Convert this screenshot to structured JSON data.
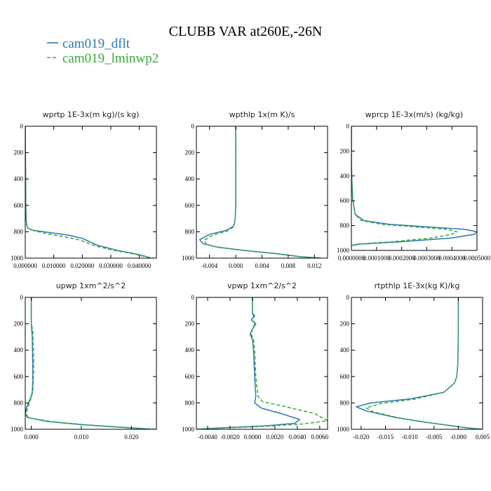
{
  "figure": {
    "title": "CLUBB VAR at260E,-26N",
    "legend": [
      {
        "label": "cam019_dflt",
        "color": "#2a78b6",
        "dash": "solid"
      },
      {
        "label": "cam019_lminwp2",
        "color": "#3aaa35",
        "dash": "dashed"
      }
    ]
  },
  "chart_data": [
    {
      "type": "line",
      "title": "wprtp  1E-3x(m kg)/(s kg)",
      "xlim": [
        0,
        0.046
      ],
      "ylim": [
        1000,
        0
      ],
      "xticks": [
        0,
        0.01,
        0.02,
        0.03,
        0.04
      ],
      "xtick_labels": [
        "0.000000",
        "0.010000",
        "0.020000",
        "0.030000",
        "0.040000"
      ],
      "yticks": [
        0,
        200,
        400,
        600,
        800,
        1000
      ],
      "ytick_labels": [
        "0",
        "200",
        "400",
        "600",
        "800",
        "1000"
      ],
      "series": [
        {
          "name": "cam019_dflt",
          "x": [
            0,
            0.0001,
            0.0002,
            0.0003,
            0.0005,
            0.001,
            0.003,
            0.008,
            0.015,
            0.02,
            0.025,
            0.032,
            0.038,
            0.042,
            0.044
          ],
          "y": [
            0,
            300,
            600,
            700,
            750,
            775,
            790,
            805,
            825,
            850,
            900,
            940,
            965,
            985,
            1000
          ]
        },
        {
          "name": "cam019_lminwp2",
          "x": [
            0,
            0.0001,
            0.0002,
            0.0003,
            0.0005,
            0.001,
            0.003,
            0.007,
            0.013,
            0.019,
            0.025,
            0.032,
            0.038,
            0.042,
            0.045
          ],
          "y": [
            0,
            300,
            600,
            700,
            750,
            775,
            792,
            812,
            835,
            862,
            910,
            945,
            968,
            988,
            1000
          ]
        }
      ]
    },
    {
      "type": "line",
      "title": "wpthlp  1x(m K)/s",
      "xlim": [
        -0.006,
        0.014
      ],
      "ylim": [
        1000,
        0
      ],
      "xticks": [
        -0.004,
        0,
        0.004,
        0.008,
        0.012
      ],
      "xtick_labels": [
        "-0.004",
        "0.000",
        "0.004",
        "0.008",
        "0.012"
      ],
      "yticks": [
        0,
        200,
        400,
        600,
        800,
        1000
      ],
      "ytick_labels": [
        "0",
        "200",
        "400",
        "600",
        "800",
        "1000"
      ],
      "series": [
        {
          "name": "cam019_dflt",
          "x": [
            0,
            0,
            0,
            -0.0001,
            -0.0002,
            -0.0004,
            -0.0015,
            -0.004,
            -0.0055,
            -0.005,
            -0.003,
            0.001,
            0.006,
            0.01,
            0.013
          ],
          "y": [
            0,
            300,
            600,
            700,
            740,
            760,
            790,
            820,
            860,
            890,
            915,
            940,
            965,
            990,
            1000
          ]
        },
        {
          "name": "cam019_lminwp2",
          "x": [
            0,
            0,
            0,
            -0.0001,
            -0.0002,
            -0.0004,
            -0.0013,
            -0.0035,
            -0.0048,
            -0.0045,
            -0.0028,
            0.0012,
            0.006,
            0.01,
            0.013
          ],
          "y": [
            0,
            300,
            600,
            700,
            740,
            765,
            795,
            825,
            865,
            895,
            918,
            942,
            966,
            990,
            1000
          ]
        }
      ]
    },
    {
      "type": "line",
      "title": "wprcp  1E-3x(m/s) (kg/kg)",
      "xlim": [
        0,
        0.0005
      ],
      "ylim": [
        1000,
        0
      ],
      "xticks": [
        0,
        0.0001,
        0.0002,
        0.0003,
        0.0004,
        0.0005
      ],
      "xtick_labels": [
        "0.0000000",
        "0.0001000",
        "0.0002000",
        "0.0003000",
        "0.0004000",
        "0.0005000"
      ],
      "yticks": [
        0,
        200,
        400,
        600,
        800,
        1000
      ],
      "ytick_labels": [
        "0",
        "200",
        "400",
        "600",
        "800",
        "1000"
      ],
      "series": [
        {
          "name": "cam019_dflt",
          "x": [
            0,
            0,
            2e-06,
            5e-06,
            1e-05,
            1.5e-05,
            5e-05,
            0.00015,
            0.0003,
            0.00045,
            0.0005,
            0.00049,
            0.0004,
            0.0002,
            3e-05,
            0
          ],
          "y": [
            0,
            300,
            450,
            580,
            650,
            710,
            760,
            790,
            810,
            830,
            850,
            870,
            900,
            930,
            950,
            960
          ]
        },
        {
          "name": "cam019_lminwp2",
          "x": [
            0,
            0,
            2e-06,
            5e-06,
            1e-05,
            1.5e-05,
            4e-05,
            0.00012,
            0.00025,
            0.00038,
            0.00042,
            0.0004,
            0.00032,
            0.00016,
            2e-05,
            0
          ],
          "y": [
            0,
            300,
            450,
            580,
            650,
            710,
            760,
            790,
            810,
            830,
            850,
            870,
            900,
            930,
            950,
            960
          ]
        }
      ]
    },
    {
      "type": "line",
      "title": "upwp  1xm^2/s^2",
      "xlim": [
        -0.0012,
        0.025
      ],
      "ylim": [
        1000,
        0
      ],
      "xticks": [
        0,
        0.01,
        0.02
      ],
      "xtick_labels": [
        "0.000",
        "0.010",
        "0.020"
      ],
      "yticks": [
        0,
        200,
        400,
        600,
        800,
        1000
      ],
      "ytick_labels": [
        "0",
        "200",
        "400",
        "600",
        "800",
        "1000"
      ],
      "series": [
        {
          "name": "cam019_dflt",
          "x": [
            0,
            0,
            0.0002,
            0.0003,
            0.0003,
            0.0002,
            -0.0002,
            -0.0009,
            -0.0012,
            -0.0008,
            0.003,
            0.01,
            0.018,
            0.024
          ],
          "y": [
            0,
            200,
            300,
            500,
            650,
            720,
            770,
            830,
            880,
            910,
            940,
            965,
            985,
            1000
          ]
        },
        {
          "name": "cam019_lminwp2",
          "x": [
            0,
            0,
            0.0003,
            0.0005,
            0.0004,
            0.0003,
            -0.0001,
            -0.0007,
            -0.001,
            -0.0006,
            0.004,
            0.011,
            0.019,
            0.025
          ],
          "y": [
            0,
            200,
            250,
            500,
            650,
            720,
            770,
            835,
            885,
            912,
            942,
            966,
            986,
            1000
          ]
        }
      ]
    },
    {
      "type": "line",
      "title": "vpwp  1xm^2/s^2",
      "xlim": [
        -0.005,
        0.0067
      ],
      "ylim": [
        1000,
        0
      ],
      "xticks": [
        -0.004,
        -0.002,
        0,
        0.002,
        0.004,
        0.006
      ],
      "xtick_labels": [
        "-0.0040",
        "-0.0020",
        "0.0000",
        "0.0020",
        "0.0040",
        "0.0060"
      ],
      "yticks": [
        0,
        200,
        400,
        600,
        800,
        1000
      ],
      "ytick_labels": [
        "0",
        "200",
        "400",
        "600",
        "800",
        "1000"
      ],
      "series": [
        {
          "name": "cam019_dflt",
          "x": [
            0,
            0,
            0.0002,
            -0.0001,
            0.0003,
            0,
            -0.0002,
            0,
            0.0001,
            0.0002,
            0.0003,
            0.0002,
            0.0008,
            0.0025,
            0.0042,
            0.0038,
            0.001,
            -0.003,
            -0.005
          ],
          "y": [
            0,
            120,
            140,
            170,
            200,
            240,
            280,
            320,
            400,
            600,
            750,
            800,
            840,
            880,
            925,
            955,
            975,
            990,
            1000
          ]
        },
        {
          "name": "cam019_lminwp2",
          "x": [
            0,
            0,
            0.0001,
            -0.0001,
            0.0002,
            0,
            -0.0001,
            0.0001,
            0.0002,
            0.0003,
            0.0005,
            0.0009,
            0.003,
            0.0055,
            0.0067,
            0.0045,
            0.001,
            -0.003,
            -0.005
          ],
          "y": [
            0,
            120,
            140,
            170,
            200,
            240,
            280,
            320,
            400,
            600,
            750,
            790,
            830,
            880,
            935,
            960,
            978,
            992,
            1000
          ]
        }
      ]
    },
    {
      "type": "line",
      "title": "rtpthlp  1E-3x(kg K)/kg",
      "xlim": [
        -0.022,
        0.005
      ],
      "ylim": [
        1000,
        0
      ],
      "xticks": [
        -0.02,
        -0.015,
        -0.01,
        -0.005,
        0,
        0.005
      ],
      "xtick_labels": [
        "-0.020",
        "-0.015",
        "-0.010",
        "-0.005",
        "-0.000",
        "0.005"
      ],
      "yticks": [
        0,
        200,
        400,
        600,
        800,
        1000
      ],
      "ytick_labels": [
        "0",
        "200",
        "400",
        "600",
        "800",
        "1000"
      ],
      "series": [
        {
          "name": "cam019_dflt",
          "x": [
            0,
            0,
            -0.0001,
            -0.0003,
            -0.0008,
            -0.003,
            -0.01,
            -0.018,
            -0.021,
            -0.019,
            -0.013,
            -0.007,
            -0.002,
            0.002,
            0.005
          ],
          "y": [
            0,
            300,
            500,
            600,
            650,
            720,
            770,
            800,
            830,
            860,
            910,
            945,
            970,
            990,
            1000
          ]
        },
        {
          "name": "cam019_lminwp2",
          "x": [
            0,
            0,
            -0.0001,
            -0.0003,
            -0.0008,
            -0.003,
            -0.009,
            -0.016,
            -0.019,
            -0.0175,
            -0.012,
            -0.0065,
            -0.0018,
            0.0022,
            0.005
          ],
          "y": [
            0,
            300,
            500,
            600,
            650,
            720,
            772,
            805,
            838,
            868,
            915,
            948,
            972,
            990,
            1000
          ]
        }
      ]
    }
  ]
}
